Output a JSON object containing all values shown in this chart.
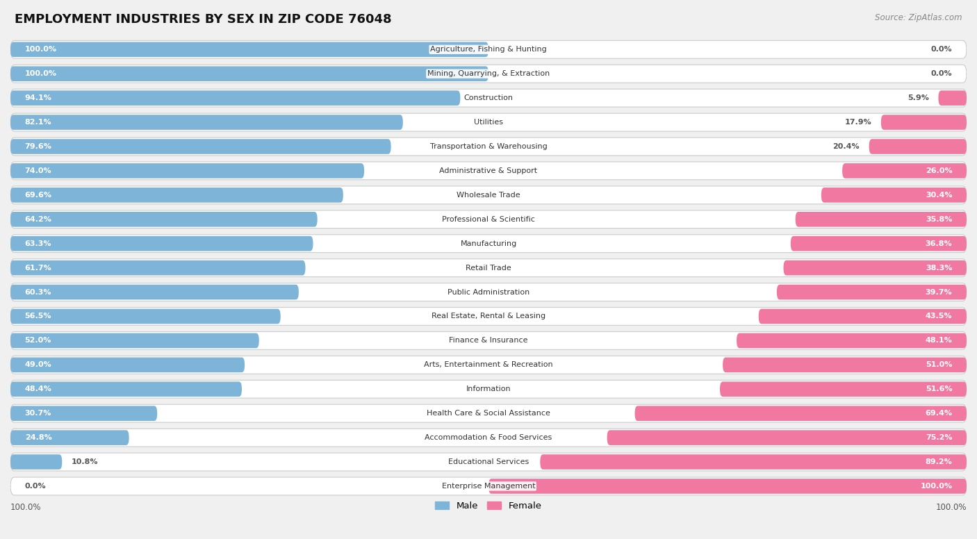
{
  "title": "EMPLOYMENT INDUSTRIES BY SEX IN ZIP CODE 76048",
  "source": "Source: ZipAtlas.com",
  "categories": [
    "Agriculture, Fishing & Hunting",
    "Mining, Quarrying, & Extraction",
    "Construction",
    "Utilities",
    "Transportation & Warehousing",
    "Administrative & Support",
    "Wholesale Trade",
    "Professional & Scientific",
    "Manufacturing",
    "Retail Trade",
    "Public Administration",
    "Real Estate, Rental & Leasing",
    "Finance & Insurance",
    "Arts, Entertainment & Recreation",
    "Information",
    "Health Care & Social Assistance",
    "Accommodation & Food Services",
    "Educational Services",
    "Enterprise Management"
  ],
  "male_pct": [
    100.0,
    100.0,
    94.1,
    82.1,
    79.6,
    74.0,
    69.6,
    64.2,
    63.3,
    61.7,
    60.3,
    56.5,
    52.0,
    49.0,
    48.4,
    30.7,
    24.8,
    10.8,
    0.0
  ],
  "female_pct": [
    0.0,
    0.0,
    5.9,
    17.9,
    20.4,
    26.0,
    30.4,
    35.8,
    36.8,
    38.3,
    39.7,
    43.5,
    48.1,
    51.0,
    51.6,
    69.4,
    75.2,
    89.2,
    100.0
  ],
  "male_color": "#7db4d8",
  "female_color": "#f178a0",
  "bg_color": "#f0f0f0",
  "bar_bg_color": "#ffffff",
  "row_sep_color": "#e0e0e0",
  "title_fontsize": 13,
  "label_fontsize": 8,
  "pct_fontsize": 8
}
